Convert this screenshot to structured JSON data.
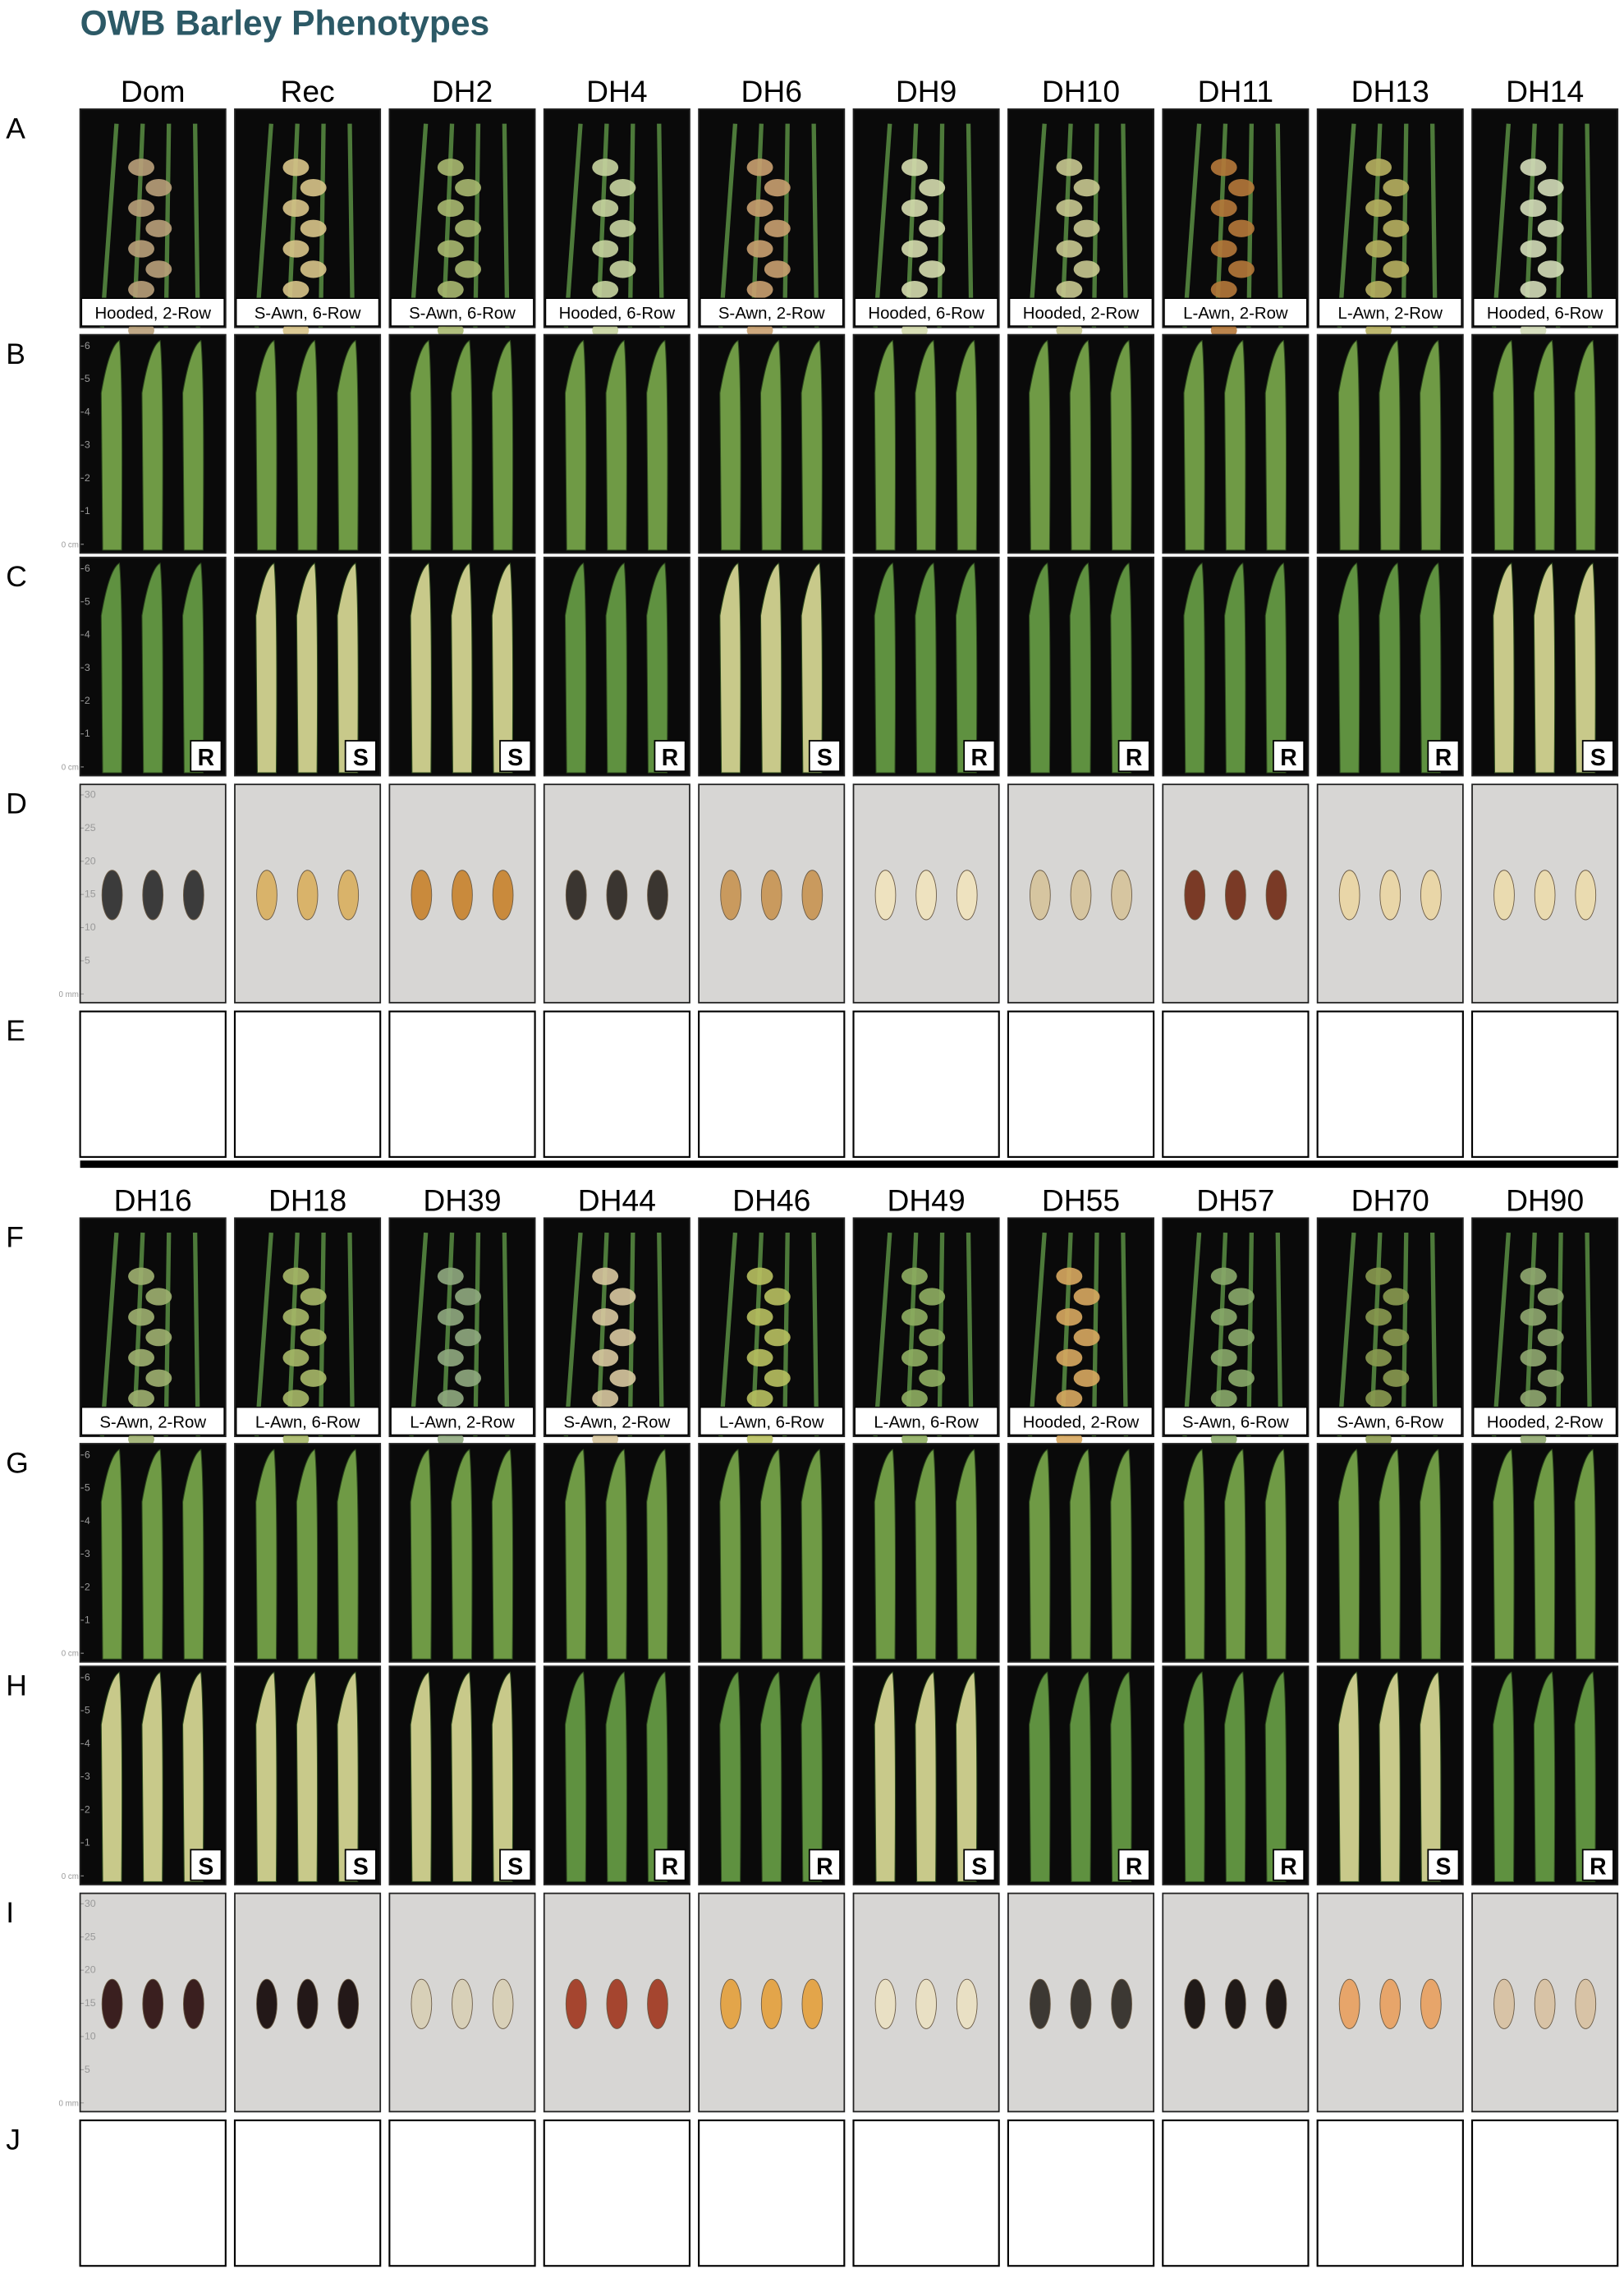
{
  "title": "OWB Barley Phenotypes",
  "leaf_scale": [
    "0 cm",
    "1",
    "2",
    "3",
    "4",
    "5",
    "6"
  ],
  "seed_scale": [
    "0 mm",
    "5",
    "10",
    "15",
    "20",
    "25",
    "30"
  ],
  "panels": [
    {
      "row_labels": [
        "A",
        "B",
        "C",
        "D",
        "E"
      ],
      "lines": [
        {
          "name": "Dom",
          "spike": "Hooded, 2-Row",
          "rust": "R"
        },
        {
          "name": "Rec",
          "spike": "S-Awn, 6-Row",
          "rust": "S"
        },
        {
          "name": "DH2",
          "spike": "S-Awn, 6-Row",
          "rust": "S"
        },
        {
          "name": "DH4",
          "spike": "Hooded, 6-Row",
          "rust": "R"
        },
        {
          "name": "DH6",
          "spike": "S-Awn, 2-Row",
          "rust": "S"
        },
        {
          "name": "DH9",
          "spike": "Hooded, 6-Row",
          "rust": "R"
        },
        {
          "name": "DH10",
          "spike": "Hooded, 2-Row",
          "rust": "R"
        },
        {
          "name": "DH11",
          "spike": "L-Awn, 2-Row",
          "rust": "R"
        },
        {
          "name": "DH13",
          "spike": "L-Awn, 2-Row",
          "rust": "R"
        },
        {
          "name": "DH14",
          "spike": "Hooded, 6-Row",
          "rust": "S"
        }
      ]
    },
    {
      "row_labels": [
        "F",
        "G",
        "H",
        "I",
        "J"
      ],
      "lines": [
        {
          "name": "DH16",
          "spike": "S-Awn, 2-Row",
          "rust": "S"
        },
        {
          "name": "DH18",
          "spike": "L-Awn, 6-Row",
          "rust": "S"
        },
        {
          "name": "DH39",
          "spike": "L-Awn, 2-Row",
          "rust": "S"
        },
        {
          "name": "DH44",
          "spike": "S-Awn, 2-Row",
          "rust": "R"
        },
        {
          "name": "DH46",
          "spike": "L-Awn, 6-Row",
          "rust": "R"
        },
        {
          "name": "DH49",
          "spike": "L-Awn, 6-Row",
          "rust": "S"
        },
        {
          "name": "DH55",
          "spike": "Hooded, 2-Row",
          "rust": "R"
        },
        {
          "name": "DH57",
          "spike": "S-Awn, 6-Row",
          "rust": "R"
        },
        {
          "name": "DH70",
          "spike": "S-Awn, 6-Row",
          "rust": "S"
        },
        {
          "name": "DH90",
          "spike": "Hooded, 2-Row",
          "rust": "R"
        }
      ]
    }
  ]
}
